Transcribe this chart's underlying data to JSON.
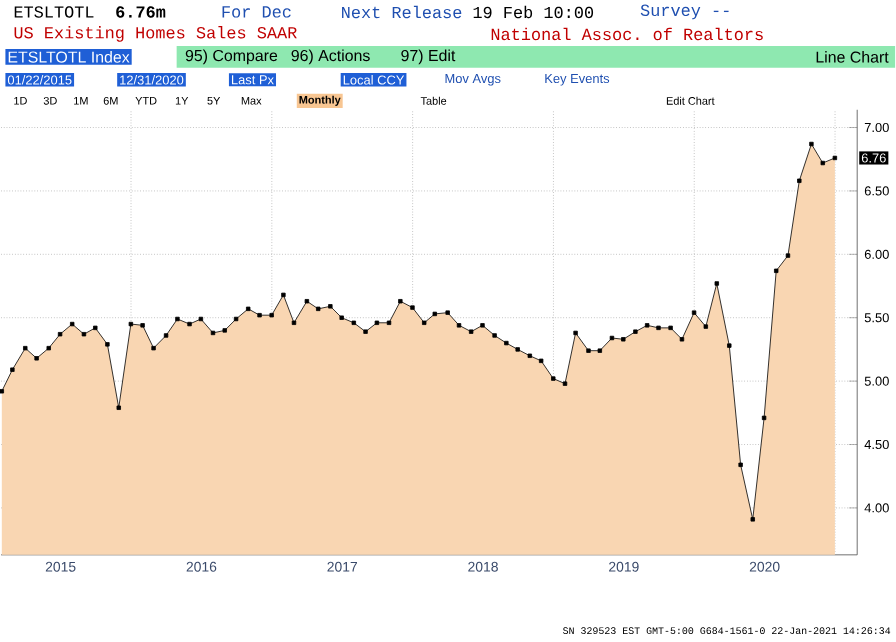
{
  "chart_data": {
    "type": "area",
    "title": "US Existing Homes Sales SAAR",
    "subtitle": "National Assoc. of Realtors",
    "x": [
      "2015-01-31",
      "2015-02-28",
      "2015-03-31",
      "2015-04-30",
      "2015-05-31",
      "2015-06-30",
      "2015-07-31",
      "2015-08-31",
      "2015-09-30",
      "2015-10-31",
      "2015-11-30",
      "2015-12-31",
      "2016-01-31",
      "2016-02-29",
      "2016-03-31",
      "2016-04-30",
      "2016-05-31",
      "2016-06-30",
      "2016-07-31",
      "2016-08-31",
      "2016-09-30",
      "2016-10-31",
      "2016-11-30",
      "2016-12-31",
      "2017-01-31",
      "2017-02-28",
      "2017-03-31",
      "2017-04-30",
      "2017-05-31",
      "2017-06-30",
      "2017-07-31",
      "2017-08-31",
      "2017-09-30",
      "2017-10-31",
      "2017-11-30",
      "2017-12-31",
      "2018-01-31",
      "2018-02-28",
      "2018-03-31",
      "2018-04-30",
      "2018-05-31",
      "2018-06-30",
      "2018-07-31",
      "2018-08-31",
      "2018-09-30",
      "2018-10-31",
      "2018-11-30",
      "2018-12-31",
      "2019-01-31",
      "2019-02-28",
      "2019-03-31",
      "2019-04-30",
      "2019-05-31",
      "2019-06-30",
      "2019-07-31",
      "2019-08-31",
      "2019-09-30",
      "2019-10-31",
      "2019-11-30",
      "2019-12-31",
      "2020-01-31",
      "2020-02-29",
      "2020-03-31",
      "2020-04-30",
      "2020-05-31",
      "2020-06-30",
      "2020-07-31",
      "2020-08-31",
      "2020-09-30",
      "2020-10-31",
      "2020-11-30",
      "2020-12-31"
    ],
    "series": [
      {
        "color": "#f9d6b2",
        "values": [
          4.92,
          5.09,
          5.26,
          5.18,
          5.26,
          5.37,
          5.45,
          5.37,
          5.42,
          5.29,
          4.79,
          5.45,
          5.44,
          5.26,
          5.36,
          5.49,
          5.45,
          5.49,
          5.38,
          5.4,
          5.49,
          5.57,
          5.52,
          5.52,
          5.68,
          5.46,
          5.63,
          5.57,
          5.59,
          5.5,
          5.46,
          5.39,
          5.46,
          5.46,
          5.63,
          5.58,
          5.46,
          5.53,
          5.54,
          5.44,
          5.39,
          5.44,
          5.36,
          5.3,
          5.25,
          5.2,
          5.16,
          5.02,
          4.98,
          5.38,
          5.24,
          5.24,
          5.34,
          5.33,
          5.39,
          5.44,
          5.42,
          5.42,
          5.33,
          5.54,
          5.43,
          5.77,
          5.28,
          4.34,
          3.91,
          4.71,
          5.87,
          5.99,
          6.58,
          6.87,
          6.72,
          6.76
        ]
      }
    ],
    "xlim": [
      "2015-01-29",
      "2021-02-28"
    ],
    "xticks": [
      {
        "value": "2015-07-01",
        "label": "2015"
      },
      {
        "value": "2016-07-01",
        "label": "2016"
      },
      {
        "value": "2017-07-01",
        "label": "2017"
      },
      {
        "value": "2018-07-01",
        "label": "2018"
      },
      {
        "value": "2019-07-01",
        "label": "2019"
      },
      {
        "value": "2020-07-01",
        "label": "2020"
      },
      {
        "value": "2016-01-01",
        "label": null
      },
      {
        "value": "2017-01-01",
        "label": null
      },
      {
        "value": "2018-01-01",
        "label": null
      },
      {
        "value": "2019-01-01",
        "label": null
      },
      {
        "value": "2020-01-01",
        "label": null
      },
      {
        "value": "2021-01-01",
        "label": null
      }
    ],
    "ylim": [
      3.63,
      7.14
    ],
    "yticks": [
      {
        "value": 4,
        "label": "4.00"
      },
      {
        "value": 4.5,
        "label": "4.50"
      },
      {
        "value": 5,
        "label": "5.00"
      },
      {
        "value": 5.5,
        "label": "5.50"
      },
      {
        "value": 6,
        "label": "6.00"
      },
      {
        "value": 6.5,
        "label": "6.50"
      },
      {
        "value": 7,
        "label": "7.00"
      }
    ],
    "grid": true,
    "marker": "square",
    "line_style": "solid",
    "annotations": [
      "ETSLTOTL",
      "6.76m",
      "For Dec",
      "Next Release",
      "19 Feb 10:00",
      "Survey --",
      "ETSLTOTL Index",
      "95) Compare",
      "96) Actions",
      "97) Edit",
      "Line Chart",
      "01/22/2015",
      "12/31/2020",
      "Last Px",
      "Local CCY",
      "Mov Avgs",
      "Key Events",
      "1D",
      "3D",
      "1M",
      "6M",
      "YTD",
      "1Y",
      "5Y",
      "Max",
      "Monthly",
      "Table",
      "Edit Chart",
      "SN 329523 EST  GMT-5:00 G684-1561-0 22-Jan-2021 14:26:34",
      {
        "text": "6.76",
        "x": "2020-12-31",
        "y": 6.76
      }
    ]
  }
}
